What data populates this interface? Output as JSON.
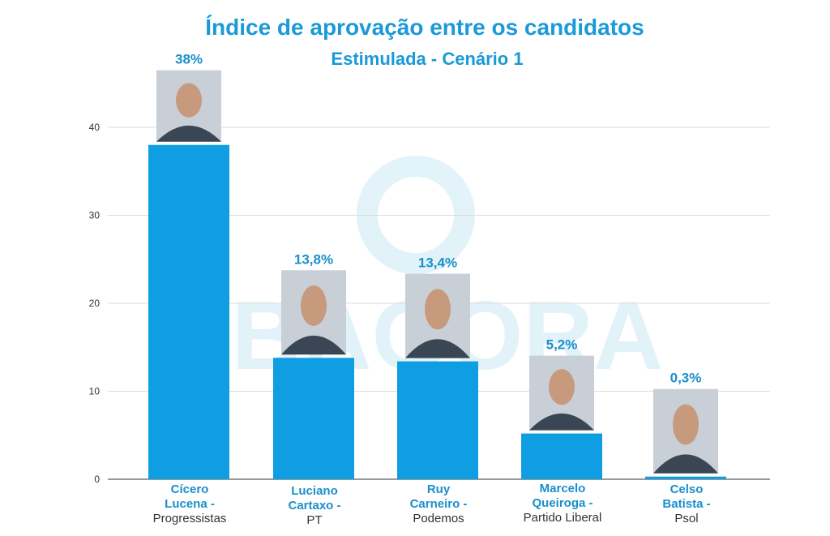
{
  "watermark": "PBAGORA",
  "chart_data": {
    "type": "bar",
    "title": "Índice de aprovação entre os candidatos",
    "subtitle": "Estimulada - Cenário 1",
    "ylim": [
      0,
      45
    ],
    "yticks": [
      0,
      10,
      20,
      30,
      40
    ],
    "grid": true,
    "bar_color": "#0f9ee2",
    "categories": [
      {
        "name_lines": [
          "Cícero",
          "Lucena -"
        ],
        "party": "Progressistas",
        "value": 38,
        "label": "38%",
        "photo": "portrait-photo"
      },
      {
        "name_lines": [
          "Luciano",
          "Cartaxo -"
        ],
        "party": "PT",
        "value": 13.8,
        "label": "13,8%",
        "photo": "portrait-photo"
      },
      {
        "name_lines": [
          "Ruy",
          "Carneiro -"
        ],
        "party": "Podemos",
        "value": 13.4,
        "label": "13,4%",
        "photo": "portrait-photo"
      },
      {
        "name_lines": [
          "Marcelo",
          "Queiroga -"
        ],
        "party": "Partido Liberal",
        "value": 5.2,
        "label": "5,2%",
        "photo": "portrait-photo"
      },
      {
        "name_lines": [
          "Celso",
          "Batista -"
        ],
        "party": "Psol",
        "value": 0.3,
        "label": "0,3%",
        "photo": "portrait-photo"
      }
    ]
  }
}
